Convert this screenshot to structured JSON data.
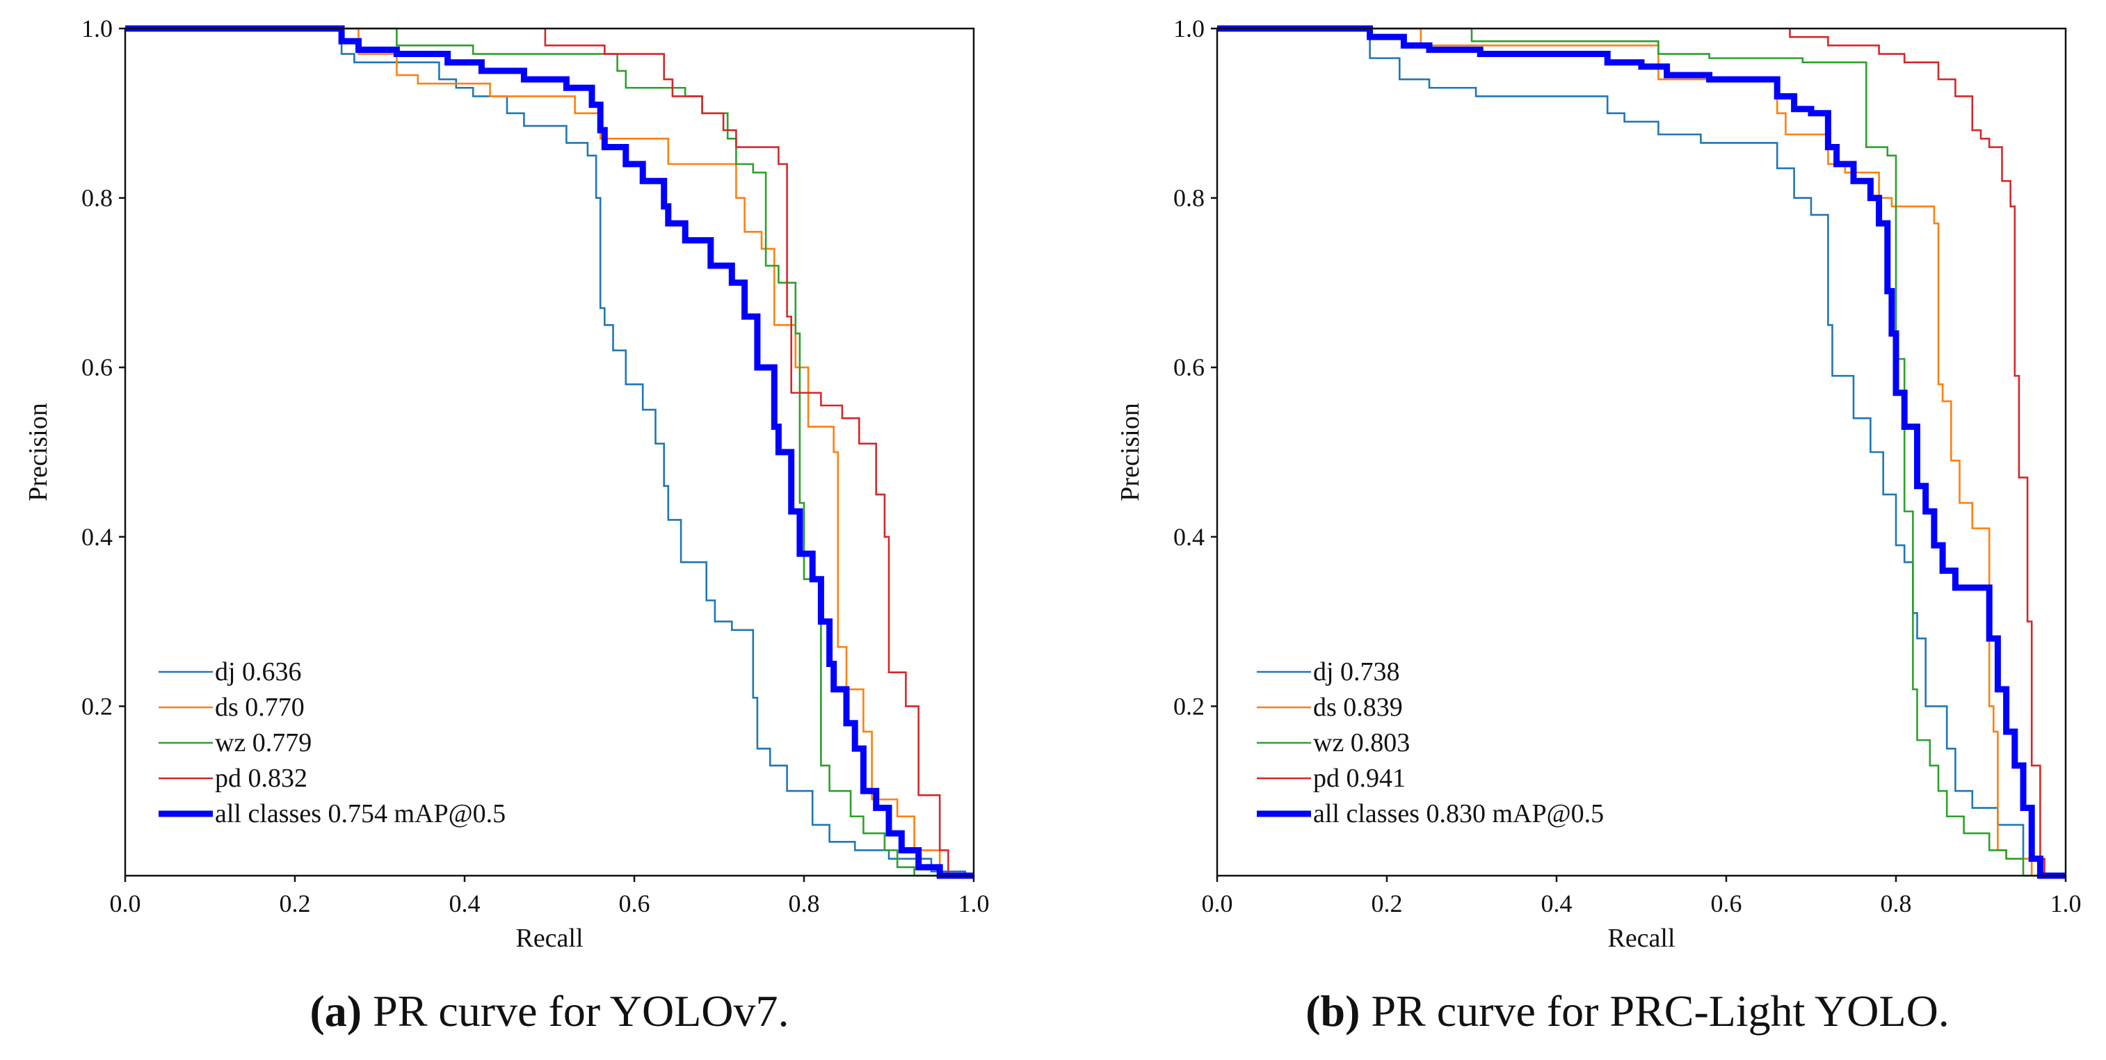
{
  "colors": {
    "dj": "#1f77b4",
    "ds": "#ff7f0e",
    "wz": "#2ca02c",
    "pd": "#d62728",
    "all": "#0000ff"
  },
  "chart_data": [
    {
      "type": "line",
      "caption_letter": "(a)",
      "caption_rest": " PR curve for YOLOv7.",
      "xlabel": "Recall",
      "ylabel": "Precision",
      "xlim": [
        0,
        1
      ],
      "ylim": [
        0,
        1
      ],
      "xticks": [
        "0.0",
        "0.2",
        "0.4",
        "0.6",
        "0.8",
        "1.0"
      ],
      "yticks": [
        "0.2",
        "0.4",
        "0.6",
        "0.8",
        "1.0"
      ],
      "legend_position": "lower-left",
      "series": [
        {
          "key": "dj",
          "name": "dj 0.636",
          "points": [
            [
              0,
              1
            ],
            [
              0.255,
              0.97
            ],
            [
              0.27,
              0.96
            ],
            [
              0.37,
              0.94
            ],
            [
              0.39,
              0.93
            ],
            [
              0.41,
              0.92
            ],
            [
              0.45,
              0.9
            ],
            [
              0.47,
              0.885
            ],
            [
              0.52,
              0.865
            ],
            [
              0.545,
              0.85
            ],
            [
              0.555,
              0.8
            ],
            [
              0.56,
              0.67
            ],
            [
              0.565,
              0.65
            ],
            [
              0.575,
              0.62
            ],
            [
              0.59,
              0.58
            ],
            [
              0.61,
              0.55
            ],
            [
              0.625,
              0.51
            ],
            [
              0.635,
              0.46
            ],
            [
              0.64,
              0.42
            ],
            [
              0.655,
              0.37
            ],
            [
              0.685,
              0.325
            ],
            [
              0.695,
              0.3
            ],
            [
              0.715,
              0.29
            ],
            [
              0.74,
              0.21
            ],
            [
              0.745,
              0.15
            ],
            [
              0.76,
              0.13
            ],
            [
              0.78,
              0.1
            ],
            [
              0.81,
              0.06
            ],
            [
              0.83,
              0.04
            ],
            [
              0.86,
              0.03
            ],
            [
              0.9,
              0.02
            ],
            [
              0.95,
              0.005
            ],
            [
              0.99,
              0
            ],
            [
              1,
              0
            ]
          ]
        },
        {
          "key": "ds",
          "name": "ds 0.770",
          "points": [
            [
              0,
              1
            ],
            [
              0.275,
              0.97
            ],
            [
              0.32,
              0.945
            ],
            [
              0.345,
              0.935
            ],
            [
              0.43,
              0.92
            ],
            [
              0.53,
              0.9
            ],
            [
              0.56,
              0.87
            ],
            [
              0.64,
              0.84
            ],
            [
              0.72,
              0.8
            ],
            [
              0.73,
              0.76
            ],
            [
              0.75,
              0.74
            ],
            [
              0.765,
              0.65
            ],
            [
              0.79,
              0.6
            ],
            [
              0.805,
              0.53
            ],
            [
              0.835,
              0.5
            ],
            [
              0.84,
              0.27
            ],
            [
              0.85,
              0.22
            ],
            [
              0.87,
              0.17
            ],
            [
              0.88,
              0.09
            ],
            [
              0.91,
              0.07
            ],
            [
              0.93,
              0.03
            ],
            [
              0.96,
              0
            ],
            [
              1,
              0
            ]
          ]
        },
        {
          "key": "wz",
          "name": "wz 0.779",
          "points": [
            [
              0,
              1
            ],
            [
              0.32,
              0.98
            ],
            [
              0.41,
              0.97
            ],
            [
              0.58,
              0.95
            ],
            [
              0.59,
              0.93
            ],
            [
              0.66,
              0.92
            ],
            [
              0.68,
              0.9
            ],
            [
              0.71,
              0.87
            ],
            [
              0.72,
              0.84
            ],
            [
              0.74,
              0.83
            ],
            [
              0.755,
              0.72
            ],
            [
              0.77,
              0.7
            ],
            [
              0.79,
              0.64
            ],
            [
              0.795,
              0.44
            ],
            [
              0.8,
              0.35
            ],
            [
              0.82,
              0.13
            ],
            [
              0.83,
              0.1
            ],
            [
              0.855,
              0.07
            ],
            [
              0.87,
              0.05
            ],
            [
              0.895,
              0.03
            ],
            [
              0.91,
              0.01
            ],
            [
              0.93,
              0
            ],
            [
              1,
              0
            ]
          ]
        },
        {
          "key": "pd",
          "name": "pd 0.832",
          "points": [
            [
              0.495,
              1
            ],
            [
              0.495,
              0.98
            ],
            [
              0.565,
              0.97
            ],
            [
              0.635,
              0.94
            ],
            [
              0.645,
              0.92
            ],
            [
              0.68,
              0.9
            ],
            [
              0.705,
              0.88
            ],
            [
              0.72,
              0.86
            ],
            [
              0.77,
              0.84
            ],
            [
              0.78,
              0.66
            ],
            [
              0.785,
              0.57
            ],
            [
              0.82,
              0.555
            ],
            [
              0.845,
              0.54
            ],
            [
              0.865,
              0.51
            ],
            [
              0.885,
              0.45
            ],
            [
              0.895,
              0.4
            ],
            [
              0.9,
              0.24
            ],
            [
              0.92,
              0.2
            ],
            [
              0.935,
              0.095
            ],
            [
              0.96,
              0.03
            ],
            [
              0.97,
              0
            ],
            [
              1,
              0
            ]
          ]
        },
        {
          "key": "all",
          "name": "all classes 0.754 mAP@0.5",
          "points": [
            [
              0,
              1
            ],
            [
              0.255,
              0.985
            ],
            [
              0.275,
              0.975
            ],
            [
              0.32,
              0.97
            ],
            [
              0.38,
              0.96
            ],
            [
              0.42,
              0.95
            ],
            [
              0.47,
              0.94
            ],
            [
              0.52,
              0.93
            ],
            [
              0.55,
              0.91
            ],
            [
              0.56,
              0.88
            ],
            [
              0.565,
              0.86
            ],
            [
              0.59,
              0.84
            ],
            [
              0.61,
              0.82
            ],
            [
              0.635,
              0.79
            ],
            [
              0.64,
              0.77
            ],
            [
              0.66,
              0.75
            ],
            [
              0.69,
              0.72
            ],
            [
              0.715,
              0.7
            ],
            [
              0.73,
              0.66
            ],
            [
              0.745,
              0.6
            ],
            [
              0.765,
              0.53
            ],
            [
              0.77,
              0.5
            ],
            [
              0.785,
              0.43
            ],
            [
              0.795,
              0.38
            ],
            [
              0.81,
              0.35
            ],
            [
              0.82,
              0.3
            ],
            [
              0.83,
              0.25
            ],
            [
              0.835,
              0.22
            ],
            [
              0.85,
              0.18
            ],
            [
              0.86,
              0.15
            ],
            [
              0.87,
              0.1
            ],
            [
              0.885,
              0.08
            ],
            [
              0.9,
              0.05
            ],
            [
              0.915,
              0.03
            ],
            [
              0.935,
              0.01
            ],
            [
              0.96,
              0
            ],
            [
              1,
              0
            ]
          ]
        }
      ]
    },
    {
      "type": "line",
      "caption_letter": "(b)",
      "caption_rest": " PR curve for PRC-Light YOLO.",
      "xlabel": "Recall",
      "ylabel": "Precision",
      "xlim": [
        0,
        1
      ],
      "ylim": [
        0,
        1
      ],
      "xticks": [
        "0.0",
        "0.2",
        "0.4",
        "0.6",
        "0.8",
        "1.0"
      ],
      "yticks": [
        "0.2",
        "0.4",
        "0.6",
        "0.8",
        "1.0"
      ],
      "legend_position": "lower-left",
      "series": [
        {
          "key": "dj",
          "name": "dj 0.738",
          "points": [
            [
              0,
              1
            ],
            [
              0.18,
              0.965
            ],
            [
              0.215,
              0.94
            ],
            [
              0.25,
              0.93
            ],
            [
              0.305,
              0.92
            ],
            [
              0.46,
              0.9
            ],
            [
              0.48,
              0.89
            ],
            [
              0.52,
              0.875
            ],
            [
              0.57,
              0.865
            ],
            [
              0.66,
              0.835
            ],
            [
              0.68,
              0.8
            ],
            [
              0.7,
              0.78
            ],
            [
              0.72,
              0.65
            ],
            [
              0.725,
              0.59
            ],
            [
              0.75,
              0.54
            ],
            [
              0.77,
              0.5
            ],
            [
              0.785,
              0.45
            ],
            [
              0.8,
              0.39
            ],
            [
              0.81,
              0.37
            ],
            [
              0.82,
              0.31
            ],
            [
              0.825,
              0.28
            ],
            [
              0.835,
              0.2
            ],
            [
              0.86,
              0.15
            ],
            [
              0.87,
              0.1
            ],
            [
              0.89,
              0.08
            ],
            [
              0.92,
              0.06
            ],
            [
              0.95,
              0.02
            ],
            [
              0.97,
              0
            ],
            [
              1,
              0
            ]
          ]
        },
        {
          "key": "ds",
          "name": "ds 0.839",
          "points": [
            [
              0,
              1
            ],
            [
              0.24,
              0.98
            ],
            [
              0.52,
              0.94
            ],
            [
              0.66,
              0.9
            ],
            [
              0.67,
              0.875
            ],
            [
              0.72,
              0.84
            ],
            [
              0.74,
              0.83
            ],
            [
              0.78,
              0.8
            ],
            [
              0.795,
              0.79
            ],
            [
              0.845,
              0.77
            ],
            [
              0.85,
              0.58
            ],
            [
              0.855,
              0.56
            ],
            [
              0.865,
              0.49
            ],
            [
              0.875,
              0.44
            ],
            [
              0.89,
              0.41
            ],
            [
              0.91,
              0.2
            ],
            [
              0.915,
              0.17
            ],
            [
              0.92,
              0.03
            ],
            [
              0.93,
              0.02
            ],
            [
              0.96,
              0
            ],
            [
              1,
              0
            ]
          ]
        },
        {
          "key": "wz",
          "name": "wz 0.803",
          "points": [
            [
              0,
              1
            ],
            [
              0.3,
              0.985
            ],
            [
              0.52,
              0.97
            ],
            [
              0.58,
              0.965
            ],
            [
              0.69,
              0.96
            ],
            [
              0.765,
              0.86
            ],
            [
              0.79,
              0.85
            ],
            [
              0.8,
              0.61
            ],
            [
              0.81,
              0.43
            ],
            [
              0.82,
              0.22
            ],
            [
              0.825,
              0.16
            ],
            [
              0.84,
              0.13
            ],
            [
              0.85,
              0.1
            ],
            [
              0.86,
              0.07
            ],
            [
              0.88,
              0.05
            ],
            [
              0.91,
              0.03
            ],
            [
              0.93,
              0.02
            ],
            [
              0.95,
              0
            ],
            [
              1,
              0
            ]
          ]
        },
        {
          "key": "pd",
          "name": "pd 0.941",
          "points": [
            [
              0.675,
              1
            ],
            [
              0.675,
              0.99
            ],
            [
              0.72,
              0.98
            ],
            [
              0.78,
              0.97
            ],
            [
              0.81,
              0.96
            ],
            [
              0.85,
              0.94
            ],
            [
              0.87,
              0.92
            ],
            [
              0.89,
              0.88
            ],
            [
              0.9,
              0.87
            ],
            [
              0.91,
              0.86
            ],
            [
              0.925,
              0.82
            ],
            [
              0.935,
              0.79
            ],
            [
              0.94,
              0.59
            ],
            [
              0.945,
              0.47
            ],
            [
              0.955,
              0.3
            ],
            [
              0.96,
              0.13
            ],
            [
              0.97,
              0.02
            ],
            [
              0.975,
              0
            ],
            [
              1,
              0
            ]
          ]
        },
        {
          "key": "all",
          "name": "all classes 0.830 mAP@0.5",
          "points": [
            [
              0,
              1
            ],
            [
              0.18,
              0.99
            ],
            [
              0.22,
              0.98
            ],
            [
              0.25,
              0.975
            ],
            [
              0.31,
              0.97
            ],
            [
              0.46,
              0.96
            ],
            [
              0.5,
              0.955
            ],
            [
              0.53,
              0.945
            ],
            [
              0.58,
              0.94
            ],
            [
              0.66,
              0.92
            ],
            [
              0.68,
              0.905
            ],
            [
              0.7,
              0.9
            ],
            [
              0.72,
              0.86
            ],
            [
              0.73,
              0.84
            ],
            [
              0.75,
              0.82
            ],
            [
              0.77,
              0.8
            ],
            [
              0.78,
              0.77
            ],
            [
              0.79,
              0.69
            ],
            [
              0.795,
              0.64
            ],
            [
              0.8,
              0.57
            ],
            [
              0.81,
              0.53
            ],
            [
              0.825,
              0.46
            ],
            [
              0.835,
              0.43
            ],
            [
              0.845,
              0.39
            ],
            [
              0.855,
              0.36
            ],
            [
              0.87,
              0.34
            ],
            [
              0.91,
              0.28
            ],
            [
              0.92,
              0.22
            ],
            [
              0.93,
              0.17
            ],
            [
              0.94,
              0.13
            ],
            [
              0.95,
              0.08
            ],
            [
              0.96,
              0.02
            ],
            [
              0.97,
              0
            ],
            [
              1,
              0
            ]
          ]
        }
      ]
    }
  ]
}
